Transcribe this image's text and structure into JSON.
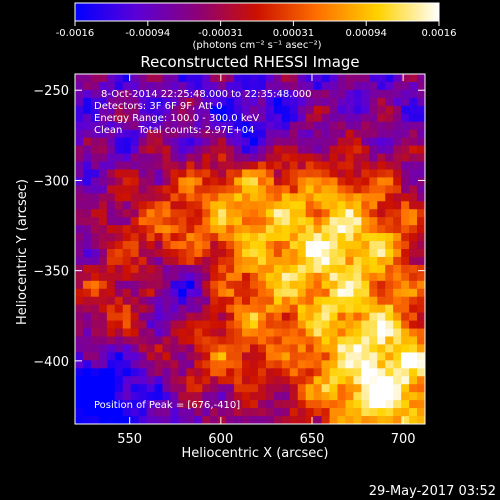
{
  "chart_data": {
    "type": "heatmap",
    "title": "Reconstructed RHESSI Image",
    "xlabel": "Heliocentric X (arcsec)",
    "ylabel": "Heliocentric Y (arcsec)",
    "xlim": [
      520,
      712
    ],
    "ylim": [
      -435,
      -241
    ],
    "x_ticks": [
      550,
      600,
      650,
      700
    ],
    "y_ticks": [
      -250,
      -300,
      -350,
      -400
    ],
    "info_lines": [
      "8-Oct-2014 22:25:48.000 to 22:35:48.000",
      "Detectors: 3F 6F 9F, Att 0",
      "Energy Range: 100.0 - 300.0 keV",
      "Clean     Total counts: 2.97E+04"
    ],
    "peak_label": "Position of Peak = [676,-410]",
    "peak_position": [
      676,
      -410
    ],
    "colorbar": {
      "min": -0.0016,
      "max": 0.0016,
      "tick_labels": [
        "-0.0016",
        "-0.00094",
        "-0.00031",
        "0.00031",
        "0.00094",
        "0.0016"
      ],
      "unit": "(photons cm⁻² s⁻¹ asec⁻²)",
      "colors": [
        "#0000ff",
        "#5a00d8",
        "#8b007a",
        "#cc1100",
        "#ff7000",
        "#ffd200",
        "#ffffff"
      ]
    },
    "grid": false
  },
  "footer": {
    "date": "29-May-2017 03:52"
  }
}
